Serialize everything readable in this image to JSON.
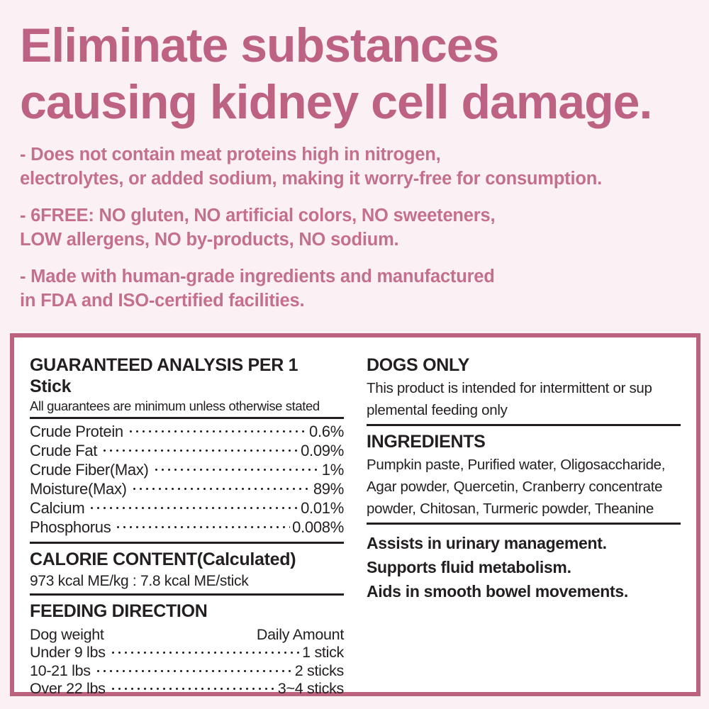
{
  "theme": {
    "background": "#fbf1f4",
    "heading_pink": "#bd6282",
    "bullet_pink": "#c4708c",
    "box_border": "#bb627f",
    "box_background": "#ffffff",
    "ink": "#231f20"
  },
  "hero": {
    "title": "Eliminate substances\ncausing kidney cell damage.",
    "bullets": [
      "- Does not contain meat proteins high in nitrogen,\nelectrolytes, or added sodium, making it worry-free for consumption.",
      "- 6FREE: NO gluten, NO artificial colors, NO sweeteners,\nLOW allergens, NO by-products, NO sodium.",
      "- Made with human-grade ingredients and manufactured\nin FDA and ISO-certified facilities."
    ]
  },
  "label_box": {
    "guaranteed_analysis": {
      "title": "GUARANTEED ANALYSIS PER 1 Stick",
      "subtitle": "All guarantees are minimum unless otherwise stated",
      "rows": [
        {
          "label": "Crude Protein",
          "value": "0.6%"
        },
        {
          "label": "Crude Fat",
          "value": "0.09%"
        },
        {
          "label": "Crude Fiber(Max)",
          "value": "1%"
        },
        {
          "label": "Moisture(Max)",
          "value": "89%"
        },
        {
          "label": "Calcium",
          "value": "0.01%"
        },
        {
          "label": "Phosphorus",
          "value": "0.008%"
        }
      ]
    },
    "calorie_content": {
      "title": "CALORIE CONTENT(Calculated)",
      "value": "973 kcal ME/kg : 7.8 kcal ME/stick"
    },
    "feeding_direction": {
      "title": "FEEDING DIRECTION",
      "col_left": "Dog weight",
      "col_right": "Daily Amount",
      "rows": [
        {
          "label": "Under 9 lbs",
          "value": "1 stick"
        },
        {
          "label": "10-21 lbs",
          "value": "2 sticks"
        },
        {
          "label": "Over 22 lbs",
          "value": "3~4 sticks"
        }
      ]
    },
    "dogs_only": {
      "title": "DOGS ONLY",
      "body": "This product is intended for intermittent or sup\nplemental feeding only"
    },
    "ingredients": {
      "title": "INGREDIENTS",
      "body": "Pumpkin paste, Purified water, Oligosaccharide,\nAgar powder, Quercetin, Cranberry concentrate\npowder, Chitosan, Turmeric powder, Theanine"
    },
    "benefits": [
      "Assists in urinary management.",
      "Supports fluid metabolism.",
      "Aids in smooth bowel movements."
    ]
  }
}
